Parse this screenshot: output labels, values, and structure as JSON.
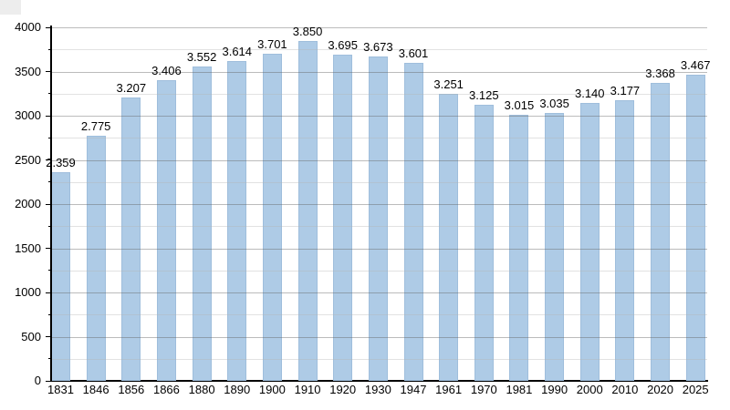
{
  "page": {
    "background": "#ffffff",
    "corner_artifact_color": "#ededed"
  },
  "chart_data": {
    "type": "bar",
    "title": "",
    "xlabel": "",
    "ylabel": "",
    "categories": [
      "1831",
      "1846",
      "1856",
      "1866",
      "1880",
      "1890",
      "1900",
      "1910",
      "1920",
      "1930",
      "1947",
      "1961",
      "1970",
      "1981",
      "1990",
      "2000",
      "2010",
      "2020",
      "2025"
    ],
    "values": [
      2359,
      2775,
      3207,
      3406,
      3552,
      3614,
      3701,
      3850,
      3695,
      3673,
      3601,
      3251,
      3125,
      3015,
      3035,
      3140,
      3177,
      3368,
      3467
    ],
    "value_labels": [
      "2.359",
      "2.775",
      "3.207",
      "3.406",
      "3.552",
      "3.614",
      "3.701",
      "3.850",
      "3.695",
      "3.673",
      "3.601",
      "3.251",
      "3.125",
      "3.015",
      "3.035",
      "3.140",
      "3.177",
      "3.368",
      "3.467"
    ],
    "ylim": [
      0,
      4000
    ],
    "y_tick_labels": [
      "0",
      "500",
      "1000",
      "1500",
      "2000",
      "2500",
      "3000",
      "3500",
      "4000"
    ],
    "y_major_tick_interval": 500,
    "y_minor_tick_interval": 250,
    "grid": "horizontal major+minor",
    "legend": "none",
    "colors": {
      "bar_fill": "#AECBE6",
      "bar_border": "#9FBEDC",
      "major_grid": "#AAAAAA",
      "minor_grid": "#E0E0E0",
      "axis": "#000000",
      "text": "#000000"
    }
  }
}
